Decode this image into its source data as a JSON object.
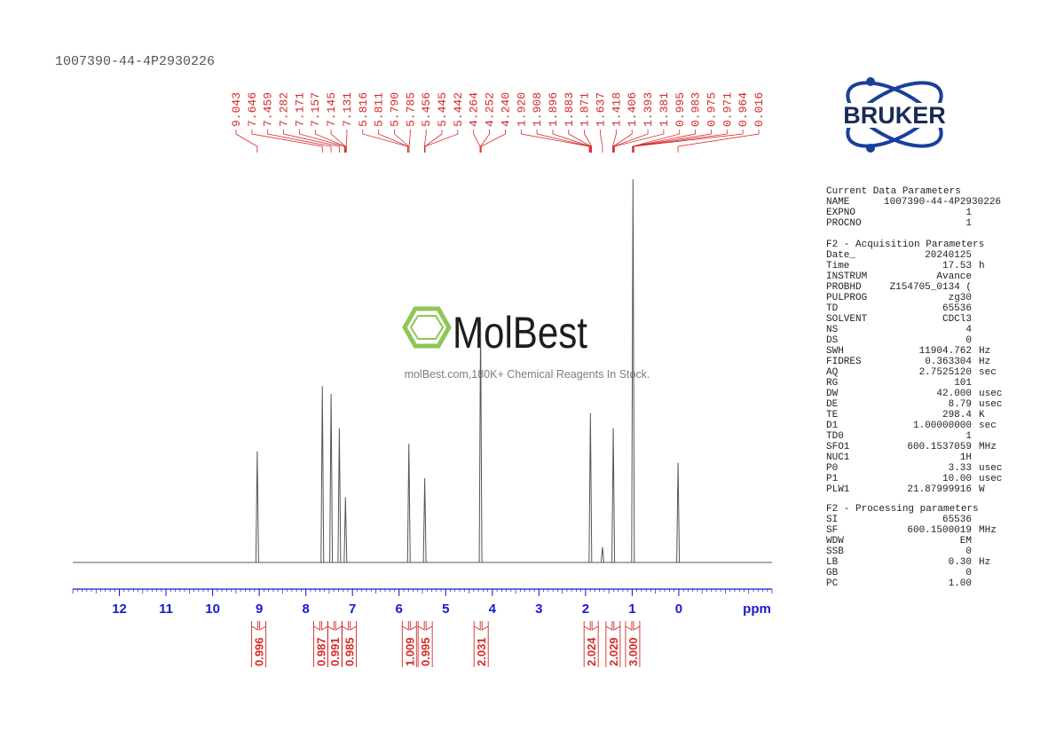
{
  "chart_data": {
    "type": "nmr-spectrum",
    "title": "1007390-44-4P2930226",
    "x_label": "ppm",
    "xlim": [
      13,
      -2
    ],
    "xticks": [
      12,
      11,
      10,
      9,
      8,
      7,
      6,
      5,
      4,
      3,
      2,
      1,
      0
    ],
    "ylim": [
      0,
      100
    ],
    "color": "#555555",
    "peaks": {
      "x": [
        9.043,
        7.646,
        7.459,
        7.282,
        7.15,
        5.79,
        5.45,
        4.252,
        1.896,
        1.637,
        1.406,
        0.983,
        0.016
      ],
      "values": [
        29,
        46,
        44,
        35,
        17,
        31,
        22,
        63,
        39,
        4,
        35,
        100,
        26
      ]
    },
    "peak_labels": [
      "9.043",
      "7.646",
      "7.459",
      "7.282",
      "7.171",
      "7.157",
      "7.145",
      "7.131",
      "5.816",
      "5.811",
      "5.790",
      "5.785",
      "5.456",
      "5.445",
      "5.442",
      "4.264",
      "4.252",
      "4.240",
      "1.920",
      "1.908",
      "1.896",
      "1.883",
      "1.871",
      "1.637",
      "1.418",
      "1.406",
      "1.393",
      "1.381",
      "0.995",
      "0.983",
      "0.975",
      "0.971",
      "0.964",
      "0.016"
    ],
    "integrals": {
      "x": [
        9.01,
        7.68,
        7.38,
        7.07,
        5.78,
        5.44,
        4.24,
        1.88,
        1.41,
        0.99
      ],
      "values": [
        0.996,
        0.987,
        0.991,
        0.985,
        1.009,
        0.995,
        2.031,
        2.024,
        2.029,
        3.0
      ],
      "value_labels": [
        "0.996",
        "0.987",
        "0.991",
        "0.985",
        "1.009",
        "0.995",
        "2.031",
        "2.024",
        "2.029",
        "3.000"
      ]
    },
    "annotation_color": "#d42a2a"
  },
  "logos": {
    "bruker": "BRUKER",
    "molbest": "MolBest",
    "molbest_tagline": "molBest.com,180K+ Chemical Reagents In Stock."
  },
  "parameters": [
    {
      "title": "Current Data Parameters",
      "rows": [
        [
          "NAME",
          "1007390-44-4P2930226"
        ],
        [
          "EXPNO",
          "1"
        ],
        [
          "PROCNO",
          "1"
        ]
      ]
    },
    {
      "title": "F2 - Acquisition Parameters",
      "rows": [
        [
          "Date_",
          "20240125"
        ],
        [
          "Time",
          "17.53",
          "h"
        ],
        [
          "INSTRUM",
          "Avance"
        ],
        [
          "PROBHD",
          "Z154705_0134 ("
        ],
        [
          "PULPROG",
          "zg30"
        ],
        [
          "TD",
          "65536"
        ],
        [
          "SOLVENT",
          "CDCl3"
        ],
        [
          "NS",
          "4"
        ],
        [
          "DS",
          "0"
        ],
        [
          "SWH",
          "11904.762",
          "Hz"
        ],
        [
          "FIDRES",
          "0.363304",
          "Hz"
        ],
        [
          "AQ",
          "2.7525120",
          "sec"
        ],
        [
          "RG",
          "101"
        ],
        [
          "DW",
          "42.000",
          "usec"
        ],
        [
          "DE",
          "8.79",
          "usec"
        ],
        [
          "TE",
          "298.4",
          "K"
        ],
        [
          "D1",
          "1.00000000",
          "sec"
        ],
        [
          "TD0",
          "1"
        ],
        [
          "SFO1",
          "600.1537059",
          "MHz"
        ],
        [
          "NUC1",
          "1H"
        ],
        [
          "P0",
          "3.33",
          "usec"
        ],
        [
          "P1",
          "10.00",
          "usec"
        ],
        [
          "PLW1",
          "21.87999916",
          "W"
        ]
      ]
    },
    {
      "title": "F2 - Processing parameters",
      "rows": [
        [
          "SI",
          "65536"
        ],
        [
          "SF",
          "600.1500019",
          "MHz"
        ],
        [
          "WDW",
          "EM"
        ],
        [
          "SSB",
          "0"
        ],
        [
          "LB",
          "0.30",
          "Hz"
        ],
        [
          "GB",
          "0"
        ],
        [
          "PC",
          "1.00"
        ]
      ]
    }
  ]
}
